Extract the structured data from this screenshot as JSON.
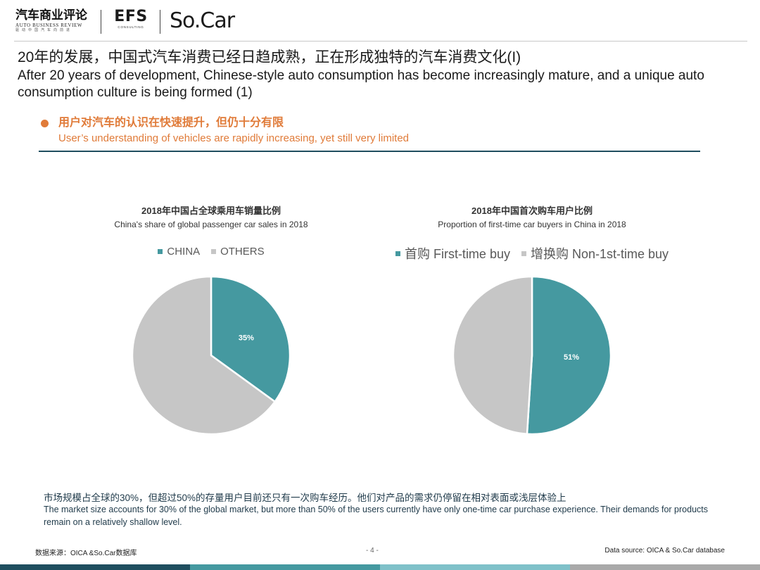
{
  "header": {
    "logo_auto_cn": "汽车商业评论",
    "logo_auto_en": "AUTO BUSINESS REVIEW",
    "logo_auto_sub": "驱动中国汽车向前进",
    "logo_efs": "EFS",
    "logo_efs_sub": "CONSULTING",
    "logo_socar": "So.Car"
  },
  "title": {
    "cn": "20年的发展，中国式汽车消费已经日趋成熟，正在形成独特的汽车消费文化(I)",
    "en": "After 20 years of development, Chinese-style auto consumption has become increasingly mature, and a unique auto consumption culture is being formed (1)"
  },
  "bullet": {
    "cn": "用户对汽车的认识在快速提升，但仍十分有限",
    "en": "User’s understanding of vehicles are rapidly increasing, yet still very limited"
  },
  "colors": {
    "teal": "#4599a0",
    "gray": "#c6c6c6",
    "orange": "#e07b39",
    "navy": "#1f4e5f"
  },
  "chart_data": [
    {
      "type": "pie",
      "title": "2018年中国占全球乘用车销量比例",
      "subtitle": "China's share of global passenger car sales in 2018",
      "legend_position": "top",
      "series": [
        {
          "name": "CHINA",
          "value": 35,
          "label": "35%",
          "color": "#4599a0"
        },
        {
          "name": "OTHERS",
          "value": 65,
          "label": "",
          "color": "#c6c6c6"
        }
      ]
    },
    {
      "type": "pie",
      "title": "2018年中国首次购车用户比例",
      "subtitle": "Proportion of first-time car buyers in China in 2018",
      "legend_position": "top",
      "series": [
        {
          "name": "首购 First-time buy",
          "value": 51,
          "label": "51%",
          "color": "#4599a0"
        },
        {
          "name": "增换购 Non-1st-time buy",
          "value": 49,
          "label": "",
          "color": "#c6c6c6"
        }
      ]
    }
  ],
  "note": {
    "cn": "市场规模占全球的30%，但超过50%的存量用户目前还只有一次购车经历。他们对产品的需求仍停留在相对表面或浅层体验上",
    "en": "The market size accounts for 30% of the global market, but more than 50% of the users currently have only one-time car purchase experience. Their demands for products remain on a relatively shallow level."
  },
  "footer": {
    "source_cn": "数据来源：OICA &So.Car数据库",
    "page": "- 4 -",
    "source_en": "Data source: OICA & So.Car database",
    "bar_colors": [
      "#1f4e5f",
      "#4599a0",
      "#7fc1c9",
      "#a9a9a9"
    ]
  }
}
